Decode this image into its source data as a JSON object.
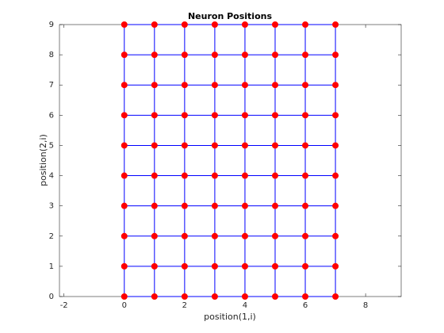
{
  "chart_data": {
    "type": "scatter",
    "title": "Neuron Positions",
    "x_label": "position(1,i)",
    "y_label": "position(2,i)",
    "x": [
      0,
      1,
      2,
      3,
      4,
      5,
      6,
      7,
      0,
      1,
      2,
      3,
      4,
      5,
      6,
      7,
      0,
      1,
      2,
      3,
      4,
      5,
      6,
      7,
      0,
      1,
      2,
      3,
      4,
      5,
      6,
      7,
      0,
      1,
      2,
      3,
      4,
      5,
      6,
      7,
      0,
      1,
      2,
      3,
      4,
      5,
      6,
      7,
      0,
      1,
      2,
      3,
      4,
      5,
      6,
      7,
      0,
      1,
      2,
      3,
      4,
      5,
      6,
      7,
      0,
      1,
      2,
      3,
      4,
      5,
      6,
      7,
      0,
      1,
      2,
      3,
      4,
      5,
      6,
      7
    ],
    "y": [
      0,
      0,
      0,
      0,
      0,
      0,
      0,
      0,
      1,
      1,
      1,
      1,
      1,
      1,
      1,
      1,
      2,
      2,
      2,
      2,
      2,
      2,
      2,
      2,
      3,
      3,
      3,
      3,
      3,
      3,
      3,
      3,
      4,
      4,
      4,
      4,
      4,
      4,
      4,
      4,
      5,
      5,
      5,
      5,
      5,
      5,
      5,
      5,
      6,
      6,
      6,
      6,
      6,
      6,
      6,
      6,
      7,
      7,
      7,
      7,
      7,
      7,
      7,
      7,
      8,
      8,
      8,
      8,
      8,
      8,
      8,
      8,
      9,
      9,
      9,
      9,
      9,
      9,
      9,
      9
    ],
    "grid_columns": 8,
    "color": "#ff0000",
    "line_color": "#0000ff",
    "xlim": [
      -2.15,
      9.18
    ],
    "ylim": [
      0,
      9
    ],
    "xticks": [
      -2,
      0,
      2,
      4,
      6,
      8
    ],
    "yticks": [
      0,
      1,
      2,
      3,
      4,
      5,
      6,
      7,
      8,
      9
    ]
  }
}
